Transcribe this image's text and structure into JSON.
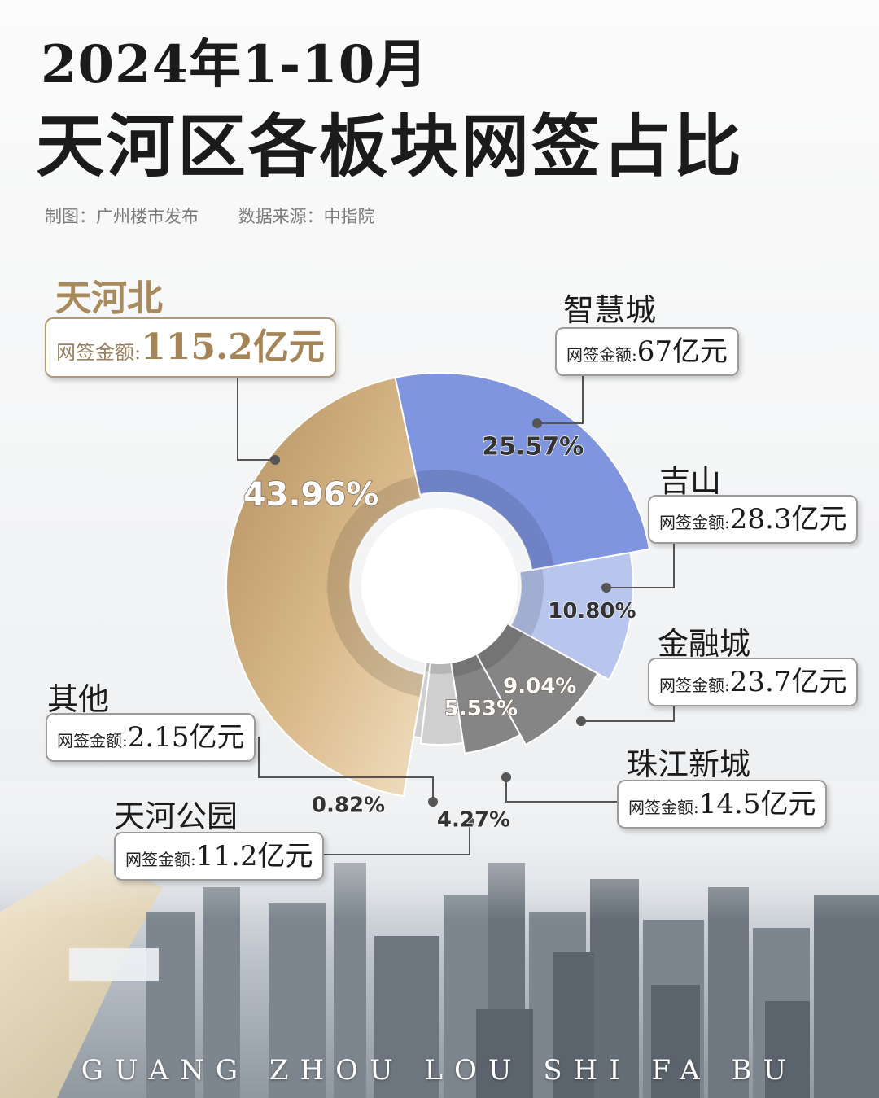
{
  "header": {
    "title_line1": "2024年1-10月",
    "title_line2": "天河区各板块网签占比",
    "credit_maker": "制图：广州楼市发布",
    "credit_source": "数据来源：中指院"
  },
  "footer": {
    "text": "GUANG ZHOU LOU SHI FA BU"
  },
  "amount_label": "网签金额:",
  "colors": {
    "gold": "#c79f6d",
    "blue": "#7f95df",
    "light_blue": "#b8c6ee",
    "gray": "#858585",
    "light_gray": "#cfcfcf"
  },
  "chart_data": {
    "type": "pie",
    "variant": "donut",
    "title": "天河区各板块网签占比",
    "categories": [
      "天河北",
      "智慧城",
      "吉山",
      "金融城",
      "珠江新城",
      "天河公园",
      "其他"
    ],
    "values": [
      43.96,
      25.57,
      10.8,
      9.04,
      5.53,
      4.27,
      0.82
    ],
    "percent_labels": [
      "43.96%",
      "25.57%",
      "10.80%",
      "9.04%",
      "5.53%",
      "4.27%",
      "0.82%"
    ],
    "amounts": [
      "115.2亿元",
      "67亿元",
      "28.3亿元",
      "23.7亿元",
      "14.5亿元",
      "11.2亿元",
      "2.15亿元"
    ],
    "unit": "亿元"
  }
}
